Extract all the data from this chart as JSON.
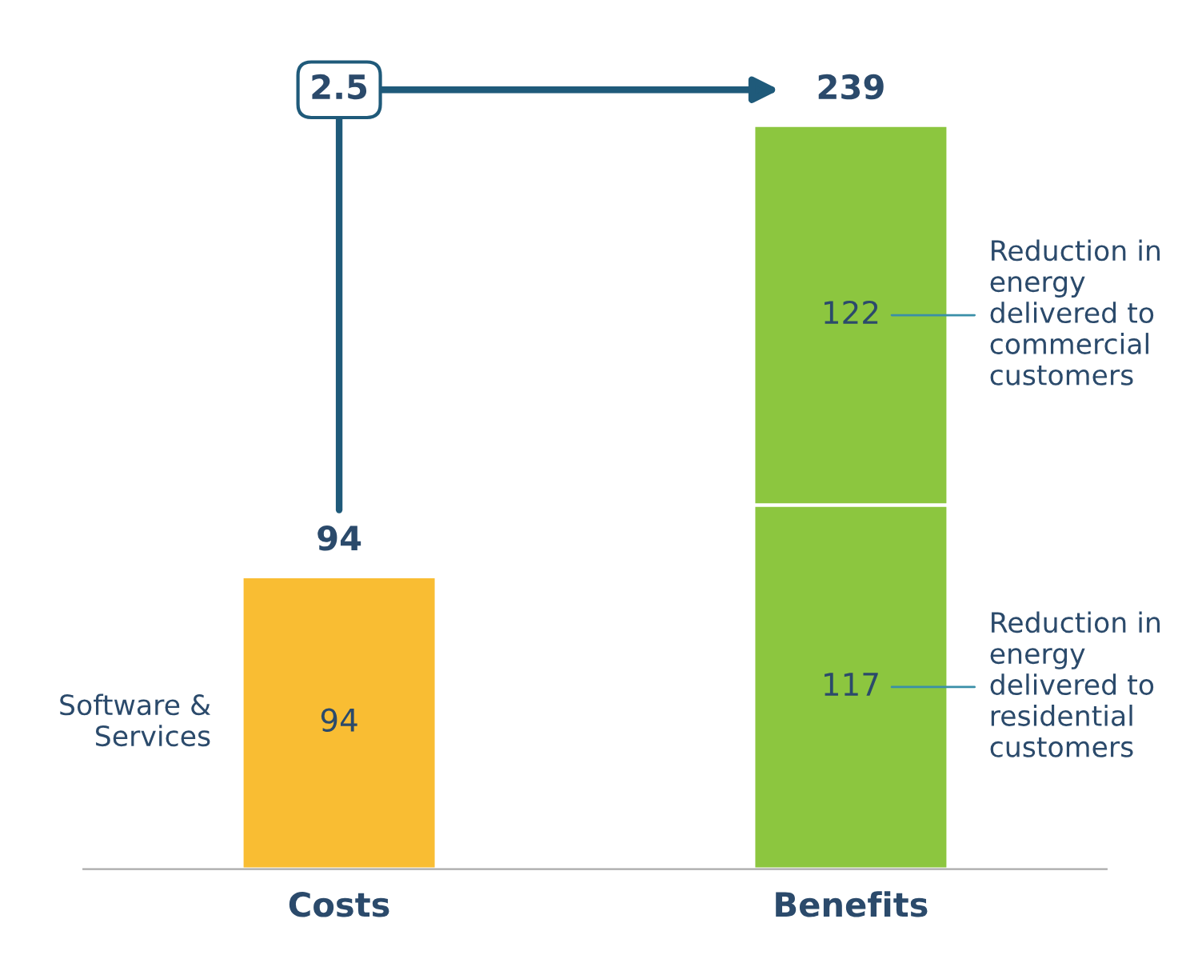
{
  "chart_data": {
    "type": "bar",
    "stacked": true,
    "categories": [
      "Costs",
      "Benefits"
    ],
    "series": [
      {
        "name": "Software & Services",
        "color": "#f9bd33",
        "values": [
          94,
          null
        ]
      },
      {
        "name": "Reduction in energy delivered to residential customers",
        "color": "#8cc63f",
        "values": [
          null,
          117
        ]
      },
      {
        "name": "Reduction in energy delivered to commercial customers",
        "color": "#8cc63f",
        "values": [
          null,
          122
        ]
      }
    ],
    "data_labels": true,
    "totals": [
      "94",
      "239"
    ],
    "annotations": [
      "2.5"
    ],
    "legend": false,
    "grid": false
  }
}
